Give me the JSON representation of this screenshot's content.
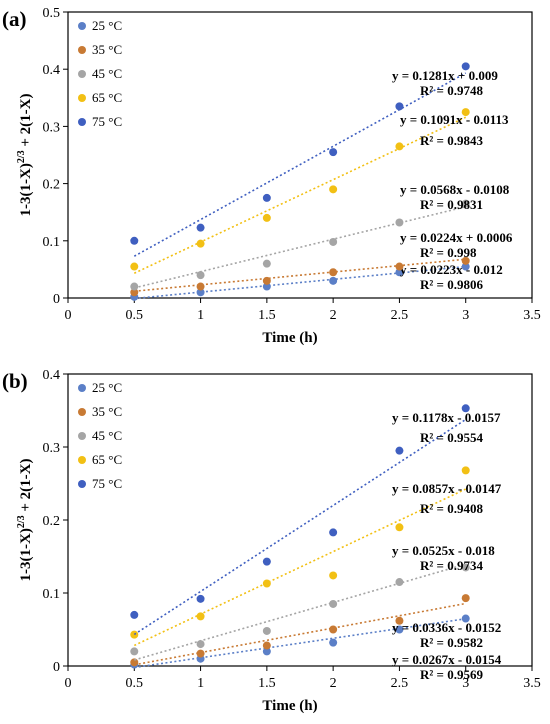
{
  "colors": {
    "25": "#5B7FC7",
    "35": "#C87A34",
    "45": "#A5A5A5",
    "65": "#F2C014",
    "75": "#3F5FC0"
  },
  "chart_data": [
    {
      "type": "scatter",
      "panel_label": "(a)",
      "xlabel": "Time (h)",
      "ylabel_html": "1-3(1-X)2/3 + 2(1-X)",
      "ylabel_parts": [
        "1-3(1-X)",
        "2/3",
        " + 2(1-X)"
      ],
      "xlim": [
        0,
        3.5
      ],
      "ylim": [
        0,
        0.5
      ],
      "xticks": [
        "0",
        "0.5",
        "1",
        "1.5",
        "2",
        "2.5",
        "3",
        "3.5"
      ],
      "yticks": [
        "0",
        "0.1",
        "0.2",
        "0.3",
        "0.4",
        "0.5"
      ],
      "x": [
        0.5,
        1,
        1.5,
        2,
        2.5,
        3
      ],
      "series": [
        {
          "name": "25 °C",
          "color_key": "25",
          "values": [
            0.002,
            0.01,
            0.02,
            0.03,
            0.045,
            0.055
          ],
          "fit": {
            "slope": 0.0223,
            "intercept": -0.012
          },
          "equation": "y = 0.0223x - 0.012",
          "r2": "R² = 0.9806"
        },
        {
          "name": "35 °C",
          "color_key": "35",
          "values": [
            0.01,
            0.02,
            0.03,
            0.045,
            0.055,
            0.065
          ],
          "fit": {
            "slope": 0.0224,
            "intercept": 0.0006
          },
          "equation": "y = 0.0224x + 0.0006",
          "r2": "R² = 0.998"
        },
        {
          "name": "45 °C",
          "color_key": "45",
          "values": [
            0.02,
            0.04,
            0.06,
            0.098,
            0.132,
            0.165
          ],
          "fit": {
            "slope": 0.0568,
            "intercept": -0.0108
          },
          "equation": "y = 0.0568x - 0.0108",
          "r2": "R² = 0.9831"
        },
        {
          "name": "65 °C",
          "color_key": "65",
          "values": [
            0.055,
            0.095,
            0.14,
            0.19,
            0.265,
            0.325
          ],
          "fit": {
            "slope": 0.1091,
            "intercept": -0.0113
          },
          "equation": "y = 0.1091x - 0.0113",
          "r2": "R² = 0.9843"
        },
        {
          "name": "75 °C",
          "color_key": "75",
          "values": [
            0.1,
            0.123,
            0.175,
            0.255,
            0.335,
            0.405
          ],
          "fit": {
            "slope": 0.1281,
            "intercept": 0.009
          },
          "equation": "y = 0.1281x + 0.009",
          "r2": "R² = 0.9748"
        }
      ],
      "grid": false,
      "legend": "top-left"
    },
    {
      "type": "scatter",
      "panel_label": "(b)",
      "xlabel": "Time (h)",
      "ylabel_parts": [
        "1-3(1-X)",
        "2/3",
        " + 2(1-X)"
      ],
      "xlim": [
        0,
        3.5
      ],
      "ylim": [
        0,
        0.4
      ],
      "xticks": [
        "0",
        "0.5",
        "1",
        "1.5",
        "2",
        "2.5",
        "3",
        "3.5"
      ],
      "yticks": [
        "0",
        "0.1",
        "0.2",
        "0.3",
        "0.4"
      ],
      "x": [
        0.5,
        1,
        1.5,
        2,
        2.5,
        3
      ],
      "series": [
        {
          "name": "25 °C",
          "color_key": "25",
          "values": [
            0.002,
            0.01,
            0.02,
            0.032,
            0.05,
            0.065
          ],
          "fit": {
            "slope": 0.0267,
            "intercept": -0.0154
          },
          "equation": "y = 0.0267x - 0.0154",
          "r2": "R² = 0.9569"
        },
        {
          "name": "35 °C",
          "color_key": "35",
          "values": [
            0.005,
            0.017,
            0.028,
            0.05,
            0.062,
            0.093
          ],
          "fit": {
            "slope": 0.0336,
            "intercept": -0.0152
          },
          "equation": "y = 0.0336x - 0.0152",
          "r2": "R² = 0.9582"
        },
        {
          "name": "45 °C",
          "color_key": "45",
          "values": [
            0.02,
            0.03,
            0.048,
            0.085,
            0.115,
            0.135
          ],
          "fit": {
            "slope": 0.0525,
            "intercept": -0.018
          },
          "equation": "y = 0.0525x - 0.018",
          "r2": "R² = 0.9734"
        },
        {
          "name": "65 °C",
          "color_key": "65",
          "values": [
            0.043,
            0.068,
            0.113,
            0.124,
            0.19,
            0.268
          ],
          "fit": {
            "slope": 0.0857,
            "intercept": -0.0147
          },
          "equation": "y = 0.0857x - 0.0147",
          "r2": "R² = 0.9408"
        },
        {
          "name": "75 °C",
          "color_key": "75",
          "values": [
            0.07,
            0.092,
            0.143,
            0.183,
            0.295,
            0.353
          ],
          "fit": {
            "slope": 0.1178,
            "intercept": -0.0157
          },
          "equation": "y = 0.1178x - 0.0157",
          "r2": "R² = 0.9554"
        }
      ],
      "grid": false,
      "legend": "top-left"
    }
  ]
}
